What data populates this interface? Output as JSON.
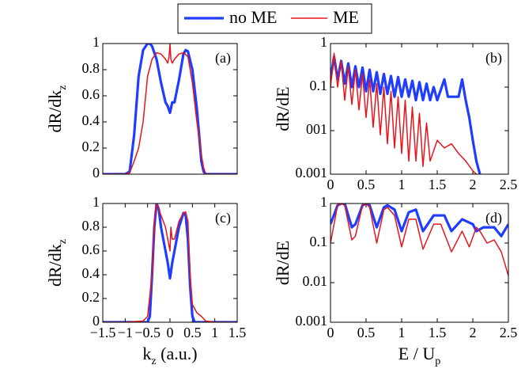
{
  "chart_data": [
    {
      "type": "line",
      "annotation": "(a)",
      "ylabel": {
        "text": "dR/dk",
        "sub": "z"
      },
      "xlim": [
        -1.5,
        1.5
      ],
      "ylim": [
        0,
        1
      ],
      "yticks": [
        0,
        0.2,
        0.4,
        0.6,
        0.8,
        1
      ],
      "series": [
        {
          "name": "no ME",
          "color": "#1f3cff",
          "linewidth": 3.2,
          "x": [
            -1.5,
            -1,
            -0.9,
            -0.8,
            -0.7,
            -0.6,
            -0.5,
            -0.45,
            -0.4,
            -0.3,
            -0.2,
            -0.1,
            -0.05,
            0,
            0.05,
            0.1,
            0.2,
            0.3,
            0.35,
            0.4,
            0.5,
            0.6,
            0.7,
            0.75,
            0.8,
            1,
            1.5
          ],
          "values": [
            0,
            0,
            0.02,
            0.3,
            0.75,
            0.95,
            1,
            1,
            0.98,
            0.88,
            0.7,
            0.55,
            0.52,
            0.47,
            0.55,
            0.55,
            0.72,
            0.92,
            0.95,
            0.94,
            0.8,
            0.5,
            0.1,
            0.02,
            0,
            0,
            0
          ]
        },
        {
          "name": "ME",
          "color": "#e8141b",
          "linewidth": 1.5,
          "x": [
            -1.5,
            -1,
            -0.9,
            -0.8,
            -0.7,
            -0.6,
            -0.5,
            -0.4,
            -0.3,
            -0.2,
            -0.1,
            -0.05,
            -0.02,
            0,
            0.02,
            0.05,
            0.1,
            0.2,
            0.3,
            0.4,
            0.5,
            0.6,
            0.7,
            0.75,
            0.8,
            1,
            1.5
          ],
          "values": [
            0,
            0,
            0.01,
            0.1,
            0.2,
            0.4,
            0.75,
            0.88,
            0.93,
            0.92,
            0.88,
            0.85,
            0.9,
            1,
            0.88,
            0.85,
            0.88,
            0.92,
            0.93,
            0.9,
            0.7,
            0.4,
            0.15,
            0.05,
            0,
            0,
            0
          ]
        }
      ]
    },
    {
      "type": "line",
      "annotation": "(b)",
      "ylabel": "dR/dE",
      "yscale": "log",
      "xlim": [
        0,
        2.5
      ],
      "xticks": [
        0,
        0.5,
        1,
        1.5,
        2,
        2.5
      ],
      "ylim": [
        0.001,
        1
      ],
      "yticks": [
        0.001,
        {
          "value": 0.01,
          "label": "001"
        },
        0.1,
        1
      ],
      "series": [
        {
          "name": "no ME",
          "color": "#1f3cff",
          "linewidth": 3.2,
          "x": [
            0,
            0.05,
            0.1,
            0.15,
            0.2,
            0.25,
            0.3,
            0.35,
            0.4,
            0.45,
            0.5,
            0.55,
            0.6,
            0.65,
            0.7,
            0.75,
            0.8,
            0.85,
            0.9,
            0.95,
            1,
            1.05,
            1.1,
            1.15,
            1.2,
            1.25,
            1.3,
            1.35,
            1.4,
            1.45,
            1.5,
            1.6,
            1.65,
            1.7,
            1.8,
            1.85,
            1.9,
            1.95,
            2,
            2.05,
            2.1
          ],
          "values": [
            0.15,
            0.5,
            0.15,
            0.4,
            0.12,
            0.35,
            0.1,
            0.3,
            0.1,
            0.28,
            0.08,
            0.25,
            0.08,
            0.22,
            0.07,
            0.2,
            0.07,
            0.18,
            0.06,
            0.17,
            0.06,
            0.15,
            0.06,
            0.14,
            0.05,
            0.13,
            0.05,
            0.12,
            0.05,
            0.1,
            0.05,
            0.15,
            0.06,
            0.06,
            0.06,
            0.15,
            0.05,
            0.02,
            0.006,
            0.002,
            0.001
          ]
        },
        {
          "name": "ME",
          "color": "#e8141b",
          "linewidth": 1.5,
          "x": [
            0,
            0.05,
            0.1,
            0.15,
            0.2,
            0.25,
            0.3,
            0.35,
            0.4,
            0.45,
            0.5,
            0.55,
            0.6,
            0.65,
            0.7,
            0.75,
            0.8,
            0.85,
            0.9,
            0.95,
            1,
            1.05,
            1.1,
            1.15,
            1.2,
            1.25,
            1.3,
            1.35,
            1.4,
            1.5,
            1.6,
            1.7,
            1.8,
            1.9,
            2,
            2.05
          ],
          "values": [
            0.1,
            0.6,
            0.1,
            0.4,
            0.05,
            0.3,
            0.04,
            0.25,
            0.03,
            0.2,
            0.02,
            0.15,
            0.012,
            0.12,
            0.008,
            0.1,
            0.005,
            0.08,
            0.004,
            0.06,
            0.003,
            0.05,
            0.002,
            0.035,
            0.002,
            0.025,
            0.0015,
            0.015,
            0.002,
            0.006,
            0.004,
            0.005,
            0.003,
            0.002,
            0.0012,
            0.001
          ]
        }
      ]
    },
    {
      "type": "line",
      "annotation": "(c)",
      "ylabel": {
        "text": "dR/dk",
        "sub": "z"
      },
      "xlabel": {
        "text": "k",
        "sub": "z",
        "after": " (a.u.)"
      },
      "xlim": [
        -1.5,
        1.5
      ],
      "xticks": [
        {
          "value": -1.5,
          "label": "−1.5"
        },
        {
          "value": -1,
          "label": "−1"
        },
        {
          "value": -0.5,
          "label": "−0.5"
        },
        0,
        0.5,
        1,
        1.5
      ],
      "ylim": [
        0,
        1
      ],
      "yticks": [
        0,
        0.2,
        0.4,
        0.6,
        0.8,
        1
      ],
      "series": [
        {
          "name": "no ME",
          "color": "#1f3cff",
          "linewidth": 3.2,
          "x": [
            -1.5,
            -1,
            -0.5,
            -0.45,
            -0.4,
            -0.35,
            -0.3,
            -0.25,
            -0.2,
            -0.1,
            -0.05,
            0,
            0.05,
            0.1,
            0.2,
            0.3,
            0.35,
            0.4,
            0.45,
            0.5,
            0.55,
            1,
            1.5
          ],
          "values": [
            0,
            0,
            0,
            0.05,
            0.4,
            0.8,
            1,
            0.95,
            0.8,
            0.6,
            0.5,
            0.37,
            0.5,
            0.6,
            0.8,
            0.92,
            0.9,
            0.7,
            0.3,
            0.05,
            0,
            0,
            0
          ]
        },
        {
          "name": "ME",
          "color": "#e8141b",
          "linewidth": 1.5,
          "x": [
            -1.5,
            -1,
            -0.6,
            -0.5,
            -0.4,
            -0.35,
            -0.3,
            -0.2,
            -0.1,
            -0.05,
            0,
            0.02,
            0.05,
            0.1,
            0.2,
            0.3,
            0.35,
            0.4,
            0.45,
            0.5,
            0.6,
            0.7,
            0.8,
            1,
            1.5
          ],
          "values": [
            0,
            0,
            0.01,
            0.05,
            0.4,
            0.85,
            1,
            0.9,
            0.8,
            0.7,
            0.6,
            0.8,
            0.7,
            0.7,
            0.85,
            0.92,
            0.93,
            0.85,
            0.4,
            0.15,
            0.08,
            0.05,
            0.01,
            0,
            0
          ]
        }
      ]
    },
    {
      "type": "line",
      "annotation": "(d)",
      "ylabel": "dR/dE",
      "xlabel": {
        "text": "E / U",
        "sub": "p"
      },
      "yscale": "log",
      "xlim": [
        0,
        2.5
      ],
      "xticks": [
        0,
        0.5,
        1,
        1.5,
        2,
        2.5
      ],
      "ylim": [
        0.001,
        1
      ],
      "yticks": [
        0.001,
        0.01,
        0.1,
        1
      ],
      "series": [
        {
          "name": "no ME",
          "color": "#1f3cff",
          "linewidth": 3.2,
          "x": [
            0,
            0.1,
            0.15,
            0.2,
            0.3,
            0.35,
            0.45,
            0.5,
            0.55,
            0.65,
            0.75,
            0.8,
            0.9,
            1,
            1.1,
            1.2,
            1.3,
            1.45,
            1.6,
            1.7,
            1.85,
            2,
            2.05,
            2.15,
            2.3,
            2.4,
            2.5
          ],
          "values": [
            0.3,
            0.9,
            1,
            1,
            0.25,
            0.3,
            0.9,
            1,
            0.9,
            0.25,
            0.8,
            0.9,
            0.7,
            0.2,
            0.6,
            0.7,
            0.2,
            0.5,
            0.5,
            0.2,
            0.4,
            0.3,
            0.2,
            0.25,
            0.25,
            0.15,
            0.3
          ]
        },
        {
          "name": "ME",
          "color": "#e8141b",
          "linewidth": 1.5,
          "x": [
            0,
            0.1,
            0.15,
            0.2,
            0.3,
            0.35,
            0.45,
            0.5,
            0.55,
            0.65,
            0.75,
            0.8,
            0.9,
            1,
            1.1,
            1.2,
            1.3,
            1.45,
            1.55,
            1.7,
            1.85,
            1.95,
            2.05,
            2.1,
            2.2,
            2.3,
            2.4,
            2.5
          ],
          "values": [
            0.1,
            0.9,
            1,
            0.9,
            0.12,
            0.15,
            0.9,
            1,
            0.8,
            0.1,
            0.7,
            0.8,
            0.5,
            0.08,
            0.4,
            0.4,
            0.07,
            0.3,
            0.3,
            0.06,
            0.2,
            0.08,
            0.25,
            0.2,
            0.1,
            0.12,
            0.06,
            0.015
          ]
        }
      ]
    }
  ]
}
